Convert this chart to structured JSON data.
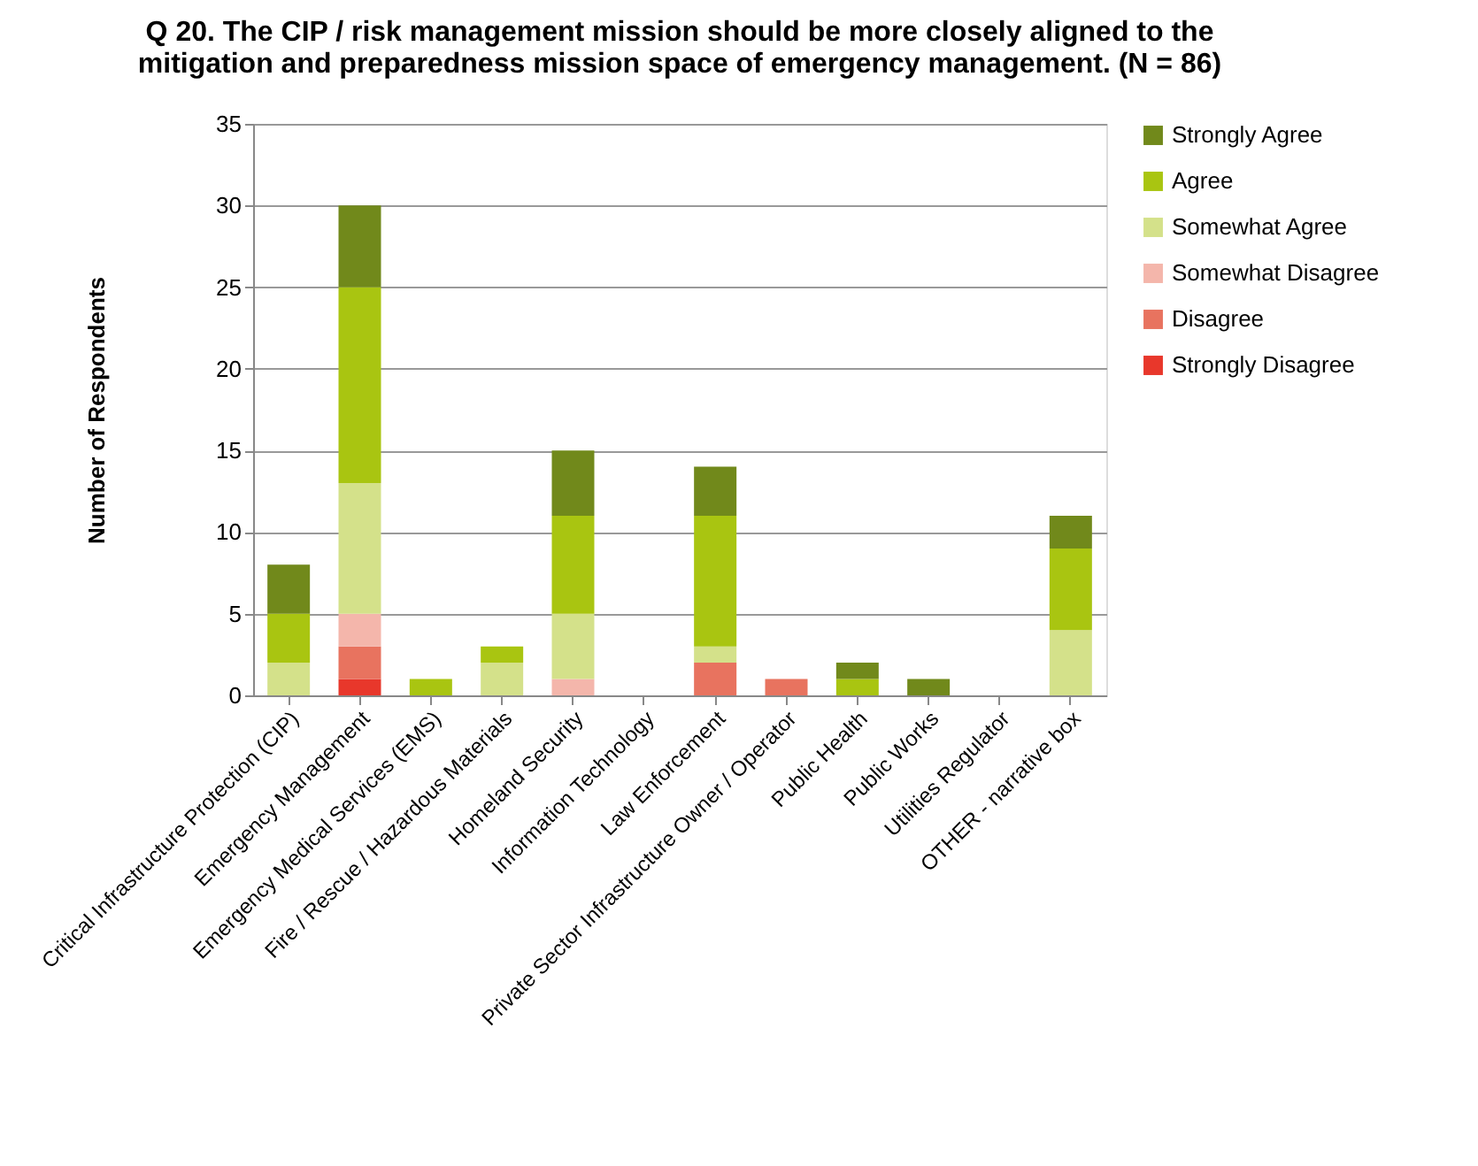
{
  "chart_data": {
    "type": "bar",
    "stacked": true,
    "title": [
      "Q 20.  The CIP / risk management mission should be more closely aligned to the",
      "mitigation and preparedness mission space of emergency management. (N = 86)"
    ],
    "ylabel": "Number of Respondents",
    "categories": [
      "Critical Infrastructure Protection (CIP)",
      "Emergency Management",
      "Emergency Medical Services (EMS)",
      "Fire / Rescue / Hazardous Materials",
      "Homeland Security",
      "Information Technology",
      "Law Enforcement",
      "Private Sector Infrastructure Owner / Operator",
      "Public Health",
      "Public Works",
      "Utilities Regulator",
      "OTHER - narrative box"
    ],
    "series": [
      {
        "name": "Strongly Disagree",
        "color": "#e8372b",
        "values": [
          0,
          1,
          0,
          0,
          0,
          0,
          0,
          0,
          0,
          0,
          0,
          0
        ]
      },
      {
        "name": "Disagree",
        "color": "#e8735f",
        "values": [
          0,
          2,
          0,
          0,
          0,
          0,
          2,
          1,
          0,
          0,
          0,
          0
        ]
      },
      {
        "name": "Somewhat Disagree",
        "color": "#f4b6ab",
        "values": [
          0,
          2,
          0,
          0,
          1,
          0,
          0,
          0,
          0,
          0,
          0,
          0
        ]
      },
      {
        "name": "Somewhat Agree",
        "color": "#d4e18a",
        "values": [
          2,
          8,
          0,
          2,
          4,
          0,
          1,
          0,
          0,
          0,
          0,
          4
        ]
      },
      {
        "name": "Agree",
        "color": "#a9c511",
        "values": [
          3,
          12,
          1,
          1,
          6,
          0,
          8,
          0,
          1,
          0,
          0,
          5
        ]
      },
      {
        "name": "Strongly Agree",
        "color": "#71891b",
        "values": [
          3,
          5,
          0,
          0,
          4,
          0,
          3,
          0,
          1,
          1,
          0,
          2
        ]
      }
    ],
    "ylim": [
      0,
      35
    ],
    "yticks": [
      0,
      5,
      10,
      15,
      20,
      25,
      30,
      35
    ],
    "grid": "y",
    "legend": "right"
  }
}
